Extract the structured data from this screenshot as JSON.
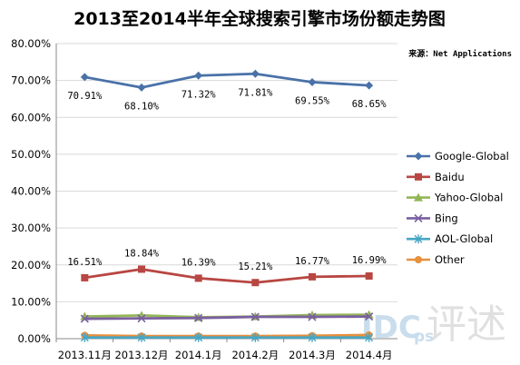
{
  "source_note": "来源：Net Applications",
  "watermark": {
    "main": "IDC",
    "sub": "ps",
    "script": "评述"
  },
  "colors": {
    "Google-Global": "#4a72a8",
    "Baidu": "#b84642",
    "Yahoo-Global": "#93b557",
    "Bing": "#7a5fa0",
    "AOL-Global": "#46a6c4",
    "Other": "#e8903c"
  },
  "chart_data": {
    "type": "line",
    "title": "2013至2014半年全球搜索引擎市场份额走势图",
    "categories": [
      "2013.11月",
      "2013.12月",
      "2014.1月",
      "2014.2月",
      "2014.3月",
      "2014.4月"
    ],
    "ylim": [
      0,
      80
    ],
    "yticks": [
      "0.00%",
      "10.00%",
      "20.00%",
      "30.00%",
      "40.00%",
      "50.00%",
      "60.00%",
      "70.00%",
      "80.00%"
    ],
    "legend_position": "right",
    "series": [
      {
        "name": "Google-Global",
        "marker": "diamond",
        "values": [
          70.91,
          68.1,
          71.32,
          71.81,
          69.55,
          68.65
        ],
        "labels": [
          "70.91%",
          "68.10%",
          "71.32%",
          "71.81%",
          "69.55%",
          "68.65%"
        ]
      },
      {
        "name": "Baidu",
        "marker": "square",
        "values": [
          16.51,
          18.84,
          16.39,
          15.21,
          16.77,
          16.99
        ],
        "labels": [
          "16.51%",
          "18.84%",
          "16.39%",
          "15.21%",
          "16.77%",
          "16.99%"
        ]
      },
      {
        "name": "Yahoo-Global",
        "marker": "triangle",
        "values": [
          6.0,
          6.3,
          5.8,
          6.0,
          6.4,
          6.5
        ]
      },
      {
        "name": "Bing",
        "marker": "x",
        "values": [
          5.4,
          5.5,
          5.6,
          5.9,
          5.9,
          6.0
        ]
      },
      {
        "name": "AOL-Global",
        "marker": "star",
        "values": [
          0.3,
          0.3,
          0.3,
          0.3,
          0.3,
          0.3
        ]
      },
      {
        "name": "Other",
        "marker": "circle",
        "values": [
          0.9,
          0.7,
          0.7,
          0.7,
          0.8,
          1.0
        ]
      }
    ]
  }
}
